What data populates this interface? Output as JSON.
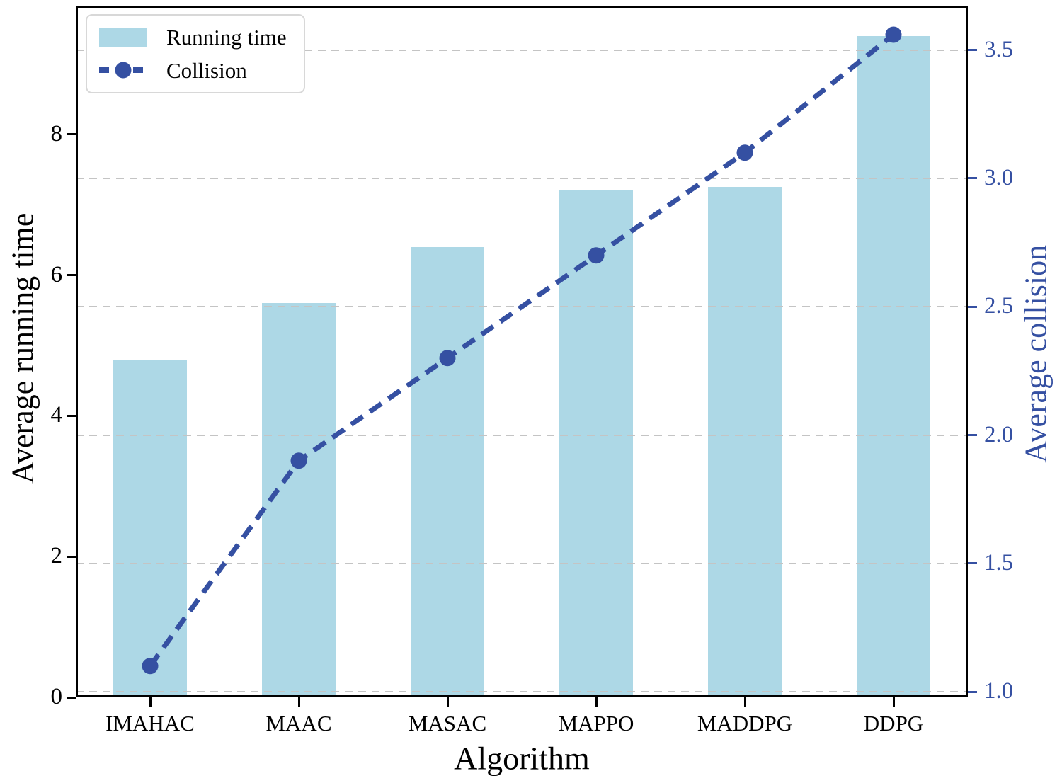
{
  "figure": {
    "background": "#ffffff"
  },
  "chart_data": {
    "type": "bar",
    "subtype": "bar-line-combo",
    "categories": [
      "IMAHAC",
      "MAAC",
      "MASAC",
      "MAPPO",
      "MADDPG",
      "DDPG"
    ],
    "series": [
      {
        "name": "Running time",
        "type": "bar",
        "axis": "left",
        "color": "#ADD8E6",
        "values": [
          4.8,
          5.6,
          6.4,
          7.2,
          7.25,
          9.4
        ]
      },
      {
        "name": "Collision",
        "type": "line",
        "axis": "right",
        "color": "#3550A2",
        "style": "dashed",
        "marker": "circle",
        "values": [
          1.1,
          1.9,
          2.3,
          2.7,
          3.1,
          3.56
        ]
      }
    ],
    "xlabel": "Algorithm",
    "ylabel_left": "Average running time",
    "ylabel_right": "Average collision",
    "left_tick_values": [
      0,
      2,
      4,
      6,
      8
    ],
    "left_tick_labels": [
      "0",
      "2",
      "4",
      "6",
      "8"
    ],
    "right_tick_values": [
      1.0,
      1.5,
      2.0,
      2.5,
      3.0,
      3.5
    ],
    "right_tick_labels": [
      "1.0",
      "1.5",
      "2.0",
      "2.5",
      "3.0",
      "3.5"
    ],
    "ylim_left": [
      0,
      9.83
    ],
    "ylim_right": [
      0.978,
      3.673
    ],
    "grid": "horizontal dashed gridlines aligned to right-axis ticks",
    "legend_position": "upper left"
  },
  "colors": {
    "bar_fill": "#ADD8E6",
    "line_blue": "#3550A2",
    "right_axis_text": "#3550A2",
    "grid_gray": "#c4c4c4",
    "axis_black": "#000000"
  }
}
